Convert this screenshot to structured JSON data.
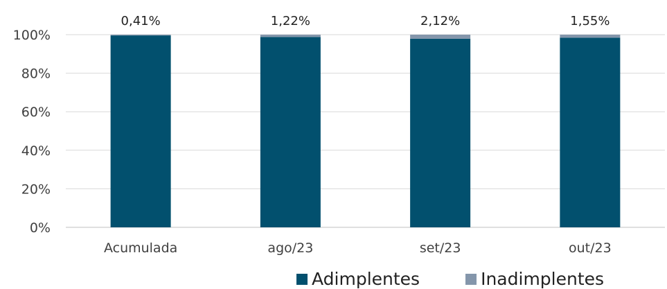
{
  "chart_data": {
    "type": "bar",
    "stacked": true,
    "categories": [
      "Acumulada",
      "ago/23",
      "set/23",
      "out/23"
    ],
    "series": [
      {
        "name": "Adimplentes",
        "values": [
          99.59,
          98.78,
          97.88,
          98.45
        ],
        "color": "#02506e"
      },
      {
        "name": "Inadimplentes",
        "values": [
          0.41,
          1.22,
          2.12,
          1.55
        ],
        "color": "#8496ab"
      }
    ],
    "data_labels": [
      "0,41%",
      "1,22%",
      "2,12%",
      "1,55%"
    ],
    "y_ticks": [
      "0%",
      "20%",
      "40%",
      "60%",
      "80%",
      "100%"
    ],
    "ylim": [
      0,
      100
    ],
    "grid": true,
    "legend_position": "bottom"
  }
}
